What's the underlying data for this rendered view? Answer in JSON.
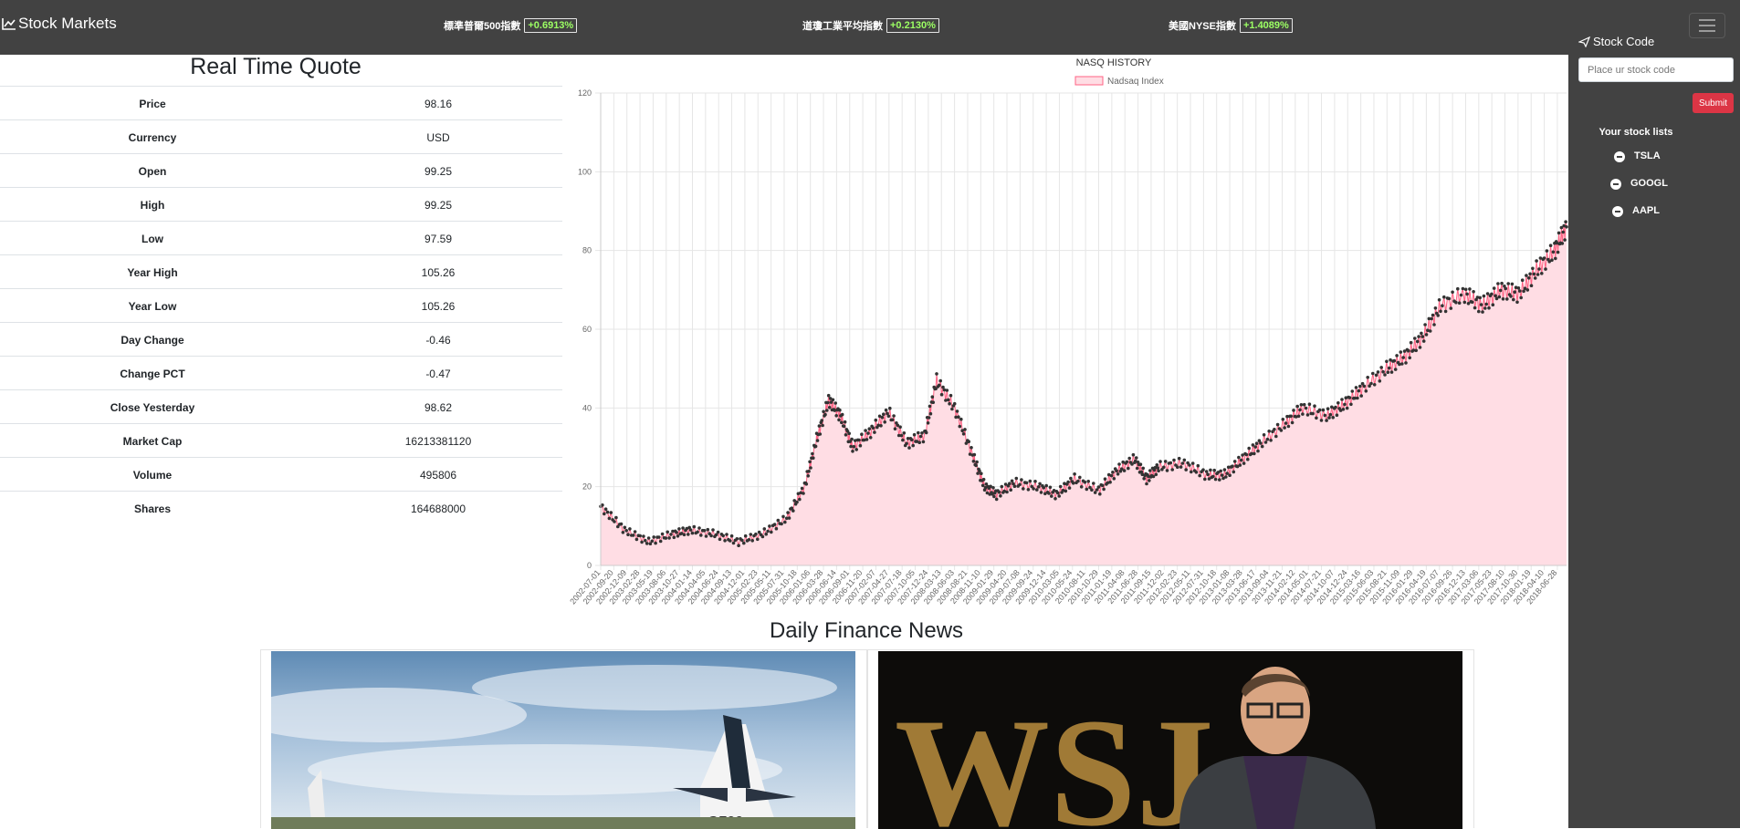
{
  "navbar": {
    "brand": "Stock Markets",
    "brand_icon": "line-chart-icon",
    "indices": [
      {
        "name": "標準普爾500指數",
        "change": "+0.6913%"
      },
      {
        "name": "道瓊工業平均指數",
        "change": "+0.2130%"
      },
      {
        "name": "美國NYSE指數",
        "change": "+1.4089%"
      }
    ],
    "badge_color": "#9cff63"
  },
  "sidebar": {
    "stock_code_label": "Stock Code",
    "input_placeholder": "Place ur stock code",
    "submit_label": "Submit",
    "lists_title": "Your stock lists",
    "stocks": [
      "TSLA",
      "GOOGL",
      "AAPL"
    ]
  },
  "quote": {
    "title": "Real Time Quote",
    "rows": [
      {
        "key": "Price",
        "value": "98.16"
      },
      {
        "key": "Currency",
        "value": "USD"
      },
      {
        "key": "Open",
        "value": "99.25"
      },
      {
        "key": "High",
        "value": "99.25"
      },
      {
        "key": "Low",
        "value": "97.59"
      },
      {
        "key": "Year High",
        "value": "105.26"
      },
      {
        "key": "Year Low",
        "value": "105.26"
      },
      {
        "key": "Day Change",
        "value": "-0.46"
      },
      {
        "key": "Change PCT",
        "value": "-0.47"
      },
      {
        "key": "Close Yesterday",
        "value": "98.62"
      },
      {
        "key": "Market Cap",
        "value": "16213381120"
      },
      {
        "key": "Volume",
        "value": "495806"
      },
      {
        "key": "Shares",
        "value": "164688000"
      }
    ]
  },
  "chart_data": {
    "type": "line",
    "title": "NASQ HISTORY",
    "legend": "Nadsaq Index",
    "legend_position": "top",
    "ylim": [
      0,
      120
    ],
    "yticks": [
      0,
      20,
      40,
      60,
      80,
      100,
      120
    ],
    "grid": true,
    "fill_color": "#ffdde4",
    "line_color": "#ff6384",
    "point_color": "#333333",
    "x_tick_labels": [
      "2002-07-01",
      "2002-09-20",
      "2002-12-09",
      "2003-02-28",
      "2003-05-19",
      "2003-08-06",
      "2003-10-27",
      "2004-01-14",
      "2004-04-05",
      "2004-06-24",
      "2004-09-13",
      "2004-12-01",
      "2005-02-23",
      "2005-05-11",
      "2005-07-31",
      "2005-10-18",
      "2006-01-06",
      "2006-03-28",
      "2006-06-14",
      "2006-09-01",
      "2006-11-20",
      "2007-02-07",
      "2007-04-27",
      "2007-07-18",
      "2007-10-05",
      "2007-12-24",
      "2008-03-13",
      "2008-06-03",
      "2008-08-21",
      "2008-11-10",
      "2009-01-29",
      "2009-04-20",
      "2009-07-08",
      "2009-09-24",
      "2009-12-14",
      "2010-03-05",
      "2010-05-24",
      "2010-08-11",
      "2010-10-29",
      "2011-01-19",
      "2011-04-08",
      "2011-06-28",
      "2011-09-15",
      "2011-12-02",
      "2012-02-23",
      "2012-05-11",
      "2012-07-31",
      "2012-10-18",
      "2013-01-08",
      "2013-03-28",
      "2013-06-17",
      "2013-09-04",
      "2013-11-21",
      "2014-02-12",
      "2014-05-01",
      "2014-07-21",
      "2014-10-07",
      "2014-12-24",
      "2015-03-16",
      "2015-06-03",
      "2015-08-21",
      "2015-11-09",
      "2016-01-29",
      "2016-04-19",
      "2016-07-07",
      "2016-09-26",
      "2016-12-13",
      "2017-03-06",
      "2017-05-23",
      "2017-08-10",
      "2017-10-30",
      "2018-01-19",
      "2018-04-10",
      "2018-06-28"
    ],
    "x": [
      2002.5,
      2002.9,
      2003.3,
      2003.7,
      2004.0,
      2004.4,
      2004.8,
      2005.2,
      2005.6,
      2005.9,
      2006.1,
      2006.3,
      2006.5,
      2006.7,
      2007.0,
      2007.3,
      2007.6,
      2007.9,
      2008.1,
      2008.4,
      2008.7,
      2008.9,
      2009.1,
      2009.4,
      2009.8,
      2010.1,
      2010.4,
      2010.8,
      2011.1,
      2011.4,
      2011.6,
      2011.8,
      2012.2,
      2012.6,
      2012.9,
      2013.2,
      2013.5,
      2013.9,
      2014.2,
      2014.6,
      2014.9,
      2015.2,
      2015.6,
      2015.9,
      2016.2,
      2016.5,
      2016.9,
      2017.2,
      2017.5,
      2017.8,
      2018.1,
      2018.4,
      2018.6
    ],
    "values": [
      15,
      9,
      6,
      8,
      9,
      8,
      6,
      8,
      12,
      20,
      32,
      42,
      38,
      30,
      34,
      39,
      31,
      33,
      47,
      40,
      28,
      20,
      18,
      21,
      20,
      18,
      22,
      19,
      24,
      27,
      22,
      25,
      26,
      23,
      23,
      27,
      31,
      36,
      40,
      38,
      41,
      45,
      50,
      53,
      58,
      66,
      69,
      66,
      70,
      69,
      75,
      80,
      86
    ]
  },
  "news": {
    "title": "Daily Finance News",
    "cards": [
      {
        "image_alt": "jet-photo"
      },
      {
        "image_alt": "WSJ"
      }
    ]
  }
}
